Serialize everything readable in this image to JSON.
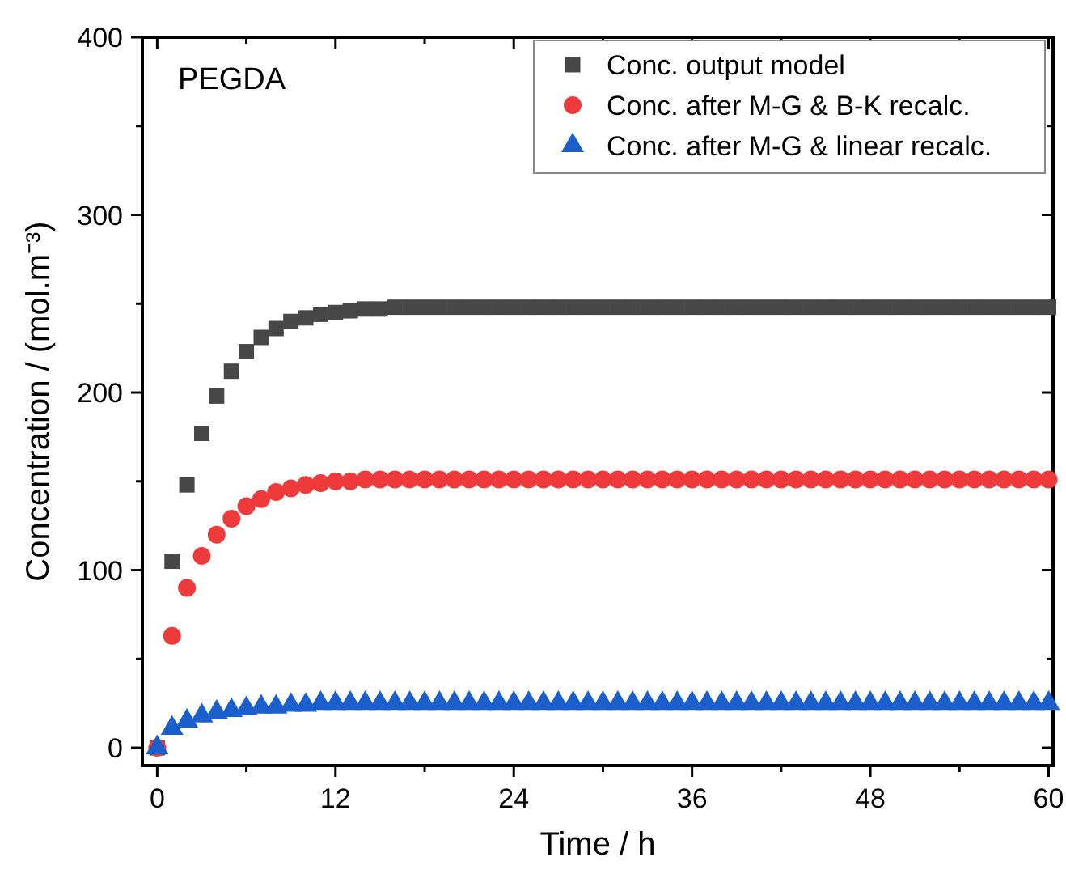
{
  "chart_data": {
    "type": "scatter",
    "xlabel": "Time / h",
    "ylabel": "Concentration / (mol.m⁻³)",
    "annotations": [
      "PEGDA"
    ],
    "x": [
      0,
      1,
      2,
      3,
      4,
      5,
      6,
      7,
      8,
      9,
      10,
      11,
      12,
      13,
      14,
      15,
      16,
      17,
      18,
      19,
      20,
      21,
      22,
      23,
      24,
      25,
      26,
      27,
      28,
      29,
      30,
      31,
      32,
      33,
      34,
      35,
      36,
      37,
      38,
      39,
      40,
      41,
      42,
      43,
      44,
      45,
      46,
      47,
      48,
      49,
      50,
      51,
      52,
      53,
      54,
      55,
      56,
      57,
      58,
      59,
      60
    ],
    "series": [
      {
        "name": "Conc. output model",
        "color": "#474747",
        "marker": "square",
        "values": [
          0,
          105,
          148,
          177,
          198,
          212,
          223,
          231,
          236,
          240,
          242,
          244,
          245,
          246,
          247,
          247,
          248,
          248,
          248,
          248,
          248,
          248,
          248,
          248,
          248,
          248,
          248,
          248,
          248,
          248,
          248,
          248,
          248,
          248,
          248,
          248,
          248,
          248,
          248,
          248,
          248,
          248,
          248,
          248,
          248,
          248,
          248,
          248,
          248,
          248,
          248,
          248,
          248,
          248,
          248,
          248,
          248,
          248,
          248,
          248,
          248
        ]
      },
      {
        "name": "Conc. after M-G & B-K recalc.",
        "color": "#ee3a3a",
        "marker": "circle",
        "values": [
          0,
          63,
          90,
          108,
          120,
          129,
          136,
          140,
          144,
          146,
          148,
          149,
          150,
          150,
          151,
          151,
          151,
          151,
          151,
          151,
          151,
          151,
          151,
          151,
          151,
          151,
          151,
          151,
          151,
          151,
          151,
          151,
          151,
          151,
          151,
          151,
          151,
          151,
          151,
          151,
          151,
          151,
          151,
          151,
          151,
          151,
          151,
          151,
          151,
          151,
          151,
          151,
          151,
          151,
          151,
          151,
          151,
          151,
          151,
          151,
          151
        ]
      },
      {
        "name": "Conc. after M-G & linear recalc.",
        "color": "#1a5fcc",
        "marker": "triangle",
        "values": [
          0,
          11,
          15,
          18,
          20,
          21,
          22,
          23,
          23,
          24,
          24,
          25,
          25,
          25,
          25,
          25,
          25,
          25,
          25,
          25,
          25,
          25,
          25,
          25,
          25,
          25,
          25,
          25,
          25,
          25,
          25,
          25,
          25,
          25,
          25,
          25,
          25,
          25,
          25,
          25,
          25,
          25,
          25,
          25,
          25,
          25,
          25,
          25,
          25,
          25,
          25,
          25,
          25,
          25,
          25,
          25,
          25,
          25,
          25,
          25,
          25
        ]
      }
    ],
    "xlim": [
      -1,
      60.3
    ],
    "xticks": [
      0,
      {
        "value": 6,
        "label": null
      },
      12,
      {
        "value": 18,
        "label": null
      },
      24,
      {
        "value": 30,
        "label": null
      },
      36,
      {
        "value": 42,
        "label": null
      },
      48,
      {
        "value": 54,
        "label": null
      },
      60
    ],
    "ylim": [
      -10,
      400
    ],
    "yticks": [
      0,
      {
        "value": 50,
        "label": null
      },
      100,
      {
        "value": 150,
        "label": null
      },
      200,
      {
        "value": 250,
        "label": null
      },
      300,
      {
        "value": 350,
        "label": null
      },
      400
    ],
    "grid": false,
    "legend": "top right"
  }
}
